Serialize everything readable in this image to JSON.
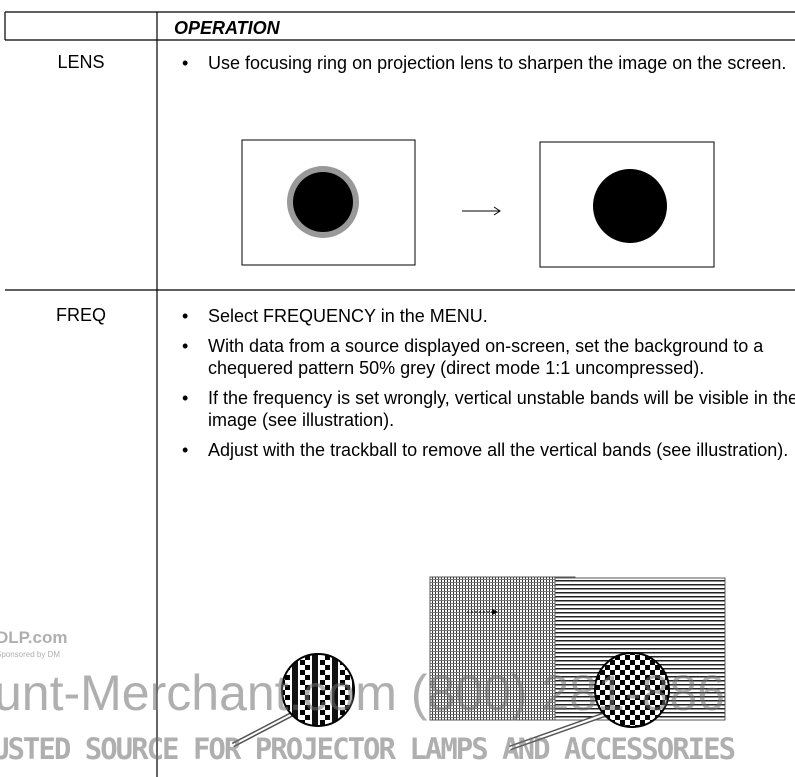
{
  "table": {
    "header": "OPERATION",
    "rows": [
      {
        "label": "LENS",
        "bullets": [
          "Use focusing ring on projection lens to sharpen the image on the screen."
        ]
      },
      {
        "label": "FREQ",
        "bullets": [
          "Select FREQUENCY in the MENU.",
          "With data from a source displayed on-screen, set the background to a chequered pattern 50% grey (direct mode 1:1 uncompressed).",
          "If the frequency is set wrongly, vertical unstable bands will be visible in the image (see illustration).",
          "Adjust with the trackball to remove all the vertical bands (see illustration)."
        ]
      }
    ]
  },
  "watermark": {
    "site": "DLP.com",
    "sponsor": "Sponsored by DM",
    "brand": "unt-Merchant.com (800) 281-886",
    "tagline": "USTED SOURCE FOR PROJECTOR LAMPS AND ACCESSORIES"
  }
}
